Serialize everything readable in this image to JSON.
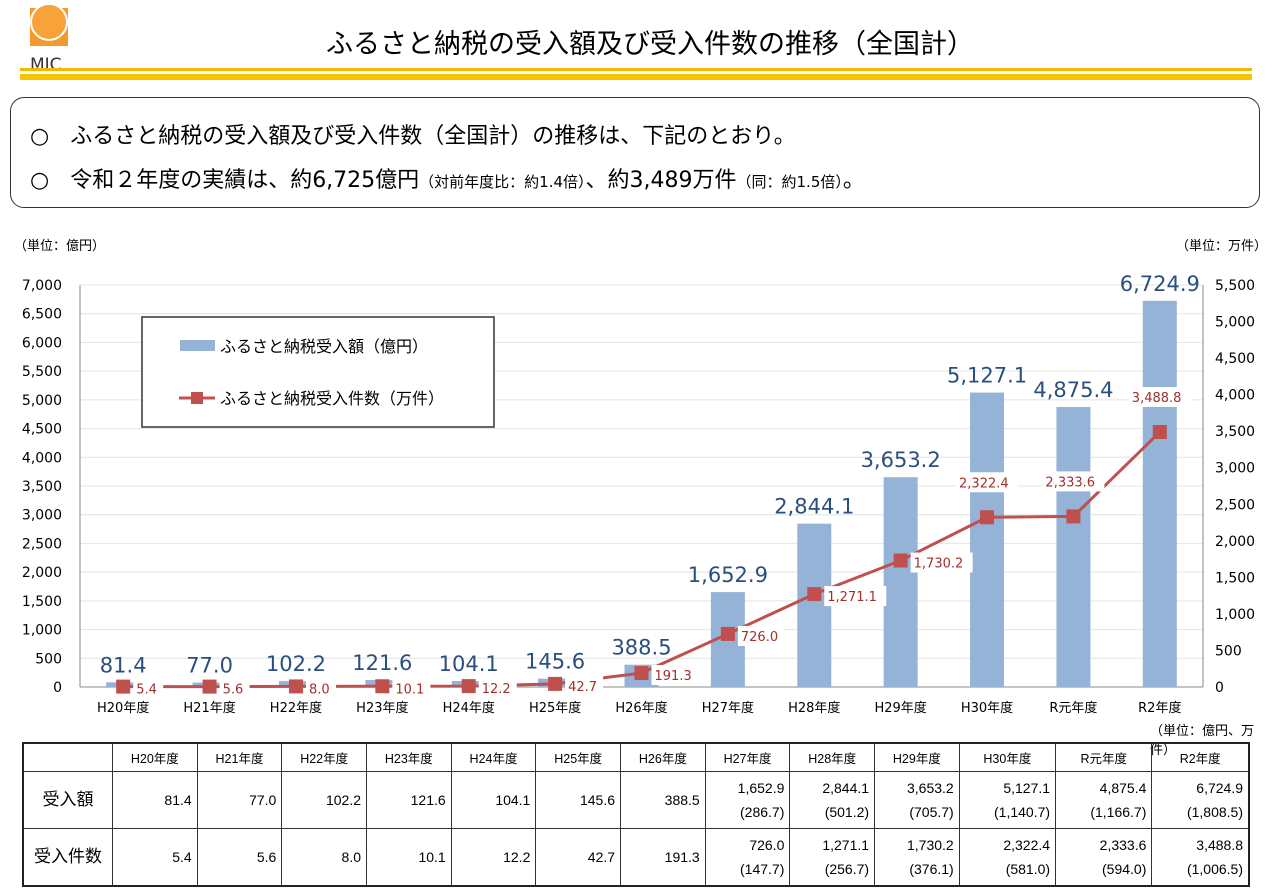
{
  "header": {
    "title": "ふるさと納税の受入額及び受入件数の推移（全国計）",
    "logo_text": "MIC"
  },
  "summary": {
    "bullet_icon": "○",
    "line1": "ふるさと納税の受入額及び受入件数（全国計）の推移は、下記のとおり。",
    "line2_main": "令和２年度の実績は、約6,725億円",
    "line2_note1": "（対前年度比：約1.4倍）",
    "line2_mid": "、約3,489万件",
    "line2_note2": "（同：約1.5倍）",
    "line2_end": "。"
  },
  "units": {
    "left": "（単位：億円）",
    "right": "（単位：万件）",
    "table": "（単位：億円、万件）"
  },
  "chart_data": {
    "type": "bar+line",
    "categories": [
      "H20年度",
      "H21年度",
      "H22年度",
      "H23年度",
      "H24年度",
      "H25年度",
      "H26年度",
      "H27年度",
      "H28年度",
      "H29年度",
      "H30年度",
      "R元年度",
      "R2年度"
    ],
    "series": [
      {
        "name": "ふるさと納税受入額（億円）",
        "type": "bar",
        "axis": "left",
        "color": "#95B3D7",
        "values": [
          81.4,
          77.0,
          102.2,
          121.6,
          104.1,
          145.6,
          388.5,
          1652.9,
          2844.1,
          3653.2,
          5127.1,
          4875.4,
          6724.9
        ]
      },
      {
        "name": "ふるさと納税受入件数（万件）",
        "type": "line",
        "axis": "right",
        "color": "#C0504D",
        "values": [
          5.4,
          5.6,
          8.0,
          10.1,
          12.2,
          42.7,
          191.3,
          726.0,
          1271.1,
          1730.2,
          2322.4,
          2333.6,
          3488.8
        ]
      }
    ],
    "ylim_left": [
      0,
      7000
    ],
    "ytick_step_left": 500,
    "ylim_right": [
      0,
      5500
    ],
    "ytick_step_right": 500,
    "grid": true,
    "legend": "top-left"
  },
  "table": {
    "headers": [
      "",
      "H20年度",
      "H21年度",
      "H22年度",
      "H23年度",
      "H24年度",
      "H25年度",
      "H26年度",
      "H27年度",
      "H28年度",
      "H29年度",
      "H30年度",
      "R元年度",
      "R2年度"
    ],
    "rows": [
      {
        "label": "受入額",
        "values": [
          "81.4",
          "77.0",
          "102.2",
          "121.6",
          "104.1",
          "145.6",
          "388.5",
          "1,652.9",
          "2,844.1",
          "3,653.2",
          "5,127.1",
          "4,875.4",
          "6,724.9"
        ],
        "sub": [
          "",
          "",
          "",
          "",
          "",
          "",
          "",
          "(286.7)",
          "(501.2)",
          "(705.7)",
          "(1,140.7)",
          "(1,166.7)",
          "(1,808.5)"
        ]
      },
      {
        "label": "受入件数",
        "values": [
          "5.4",
          "5.6",
          "8.0",
          "10.1",
          "12.2",
          "42.7",
          "191.3",
          "726.0",
          "1,271.1",
          "1,730.2",
          "2,322.4",
          "2,333.6",
          "3,488.8"
        ],
        "sub": [
          "",
          "",
          "",
          "",
          "",
          "",
          "",
          "(147.7)",
          "(256.7)",
          "(376.1)",
          "(581.0)",
          "(594.0)",
          "(1,006.5)"
        ]
      }
    ]
  }
}
